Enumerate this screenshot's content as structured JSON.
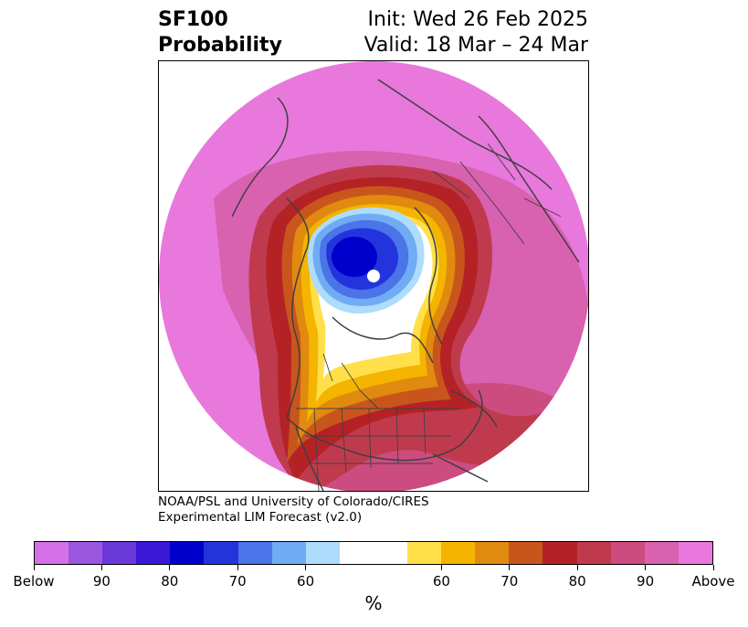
{
  "title": {
    "variable": "SF100",
    "subtitle": "Probability",
    "init": "Init: Wed 26 Feb 2025",
    "valid": "Valid: 18 Mar – 24 Mar"
  },
  "credit": {
    "line1": "NOAA/PSL and University of Colorado/CIRES",
    "line2": "Experimental LIM Forecast (v2.0)"
  },
  "map": {
    "projection": "polar stereographic (North Pole)",
    "features": [
      "coastlines",
      "country borders",
      "US state borders",
      "Canadian province borders"
    ],
    "probability_pattern": "below-normal minimum centered over the Arctic north of North America; above-normal probabilities elsewhere"
  },
  "colorbar": {
    "unit": "%",
    "colors": [
      "#d670e8",
      "#9b56e0",
      "#6a38d8",
      "#3a18d8",
      "#0000cc",
      "#2434dc",
      "#4a74e8",
      "#70acf4",
      "#aedcfc",
      "#ffffff",
      "#ffffff",
      "#ffe04a",
      "#f4b400",
      "#e08a10",
      "#c8561c",
      "#b42226",
      "#c03a4e",
      "#cc4c80",
      "#d862b0",
      "#e878dc"
    ],
    "ticks": [
      "Below",
      "90",
      "80",
      "70",
      "60",
      "60",
      "70",
      "80",
      "90",
      "Above"
    ]
  }
}
